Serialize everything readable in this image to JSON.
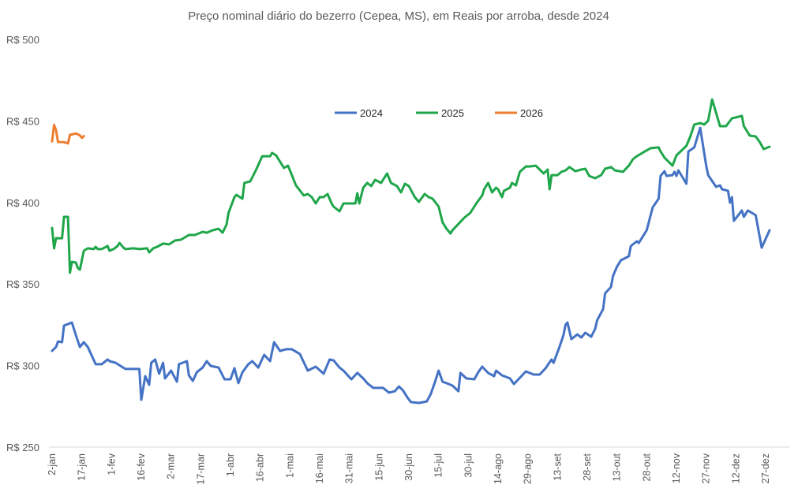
{
  "chart_data": {
    "type": "line",
    "title": "Preço nominal diário do bezerro (Cepea, MS), em Reais por arroba, desde 2024",
    "xlabel": "",
    "ylabel": "",
    "ylim": [
      250,
      500
    ],
    "yticks": [
      250,
      300,
      350,
      400,
      450,
      500
    ],
    "ytick_labels": [
      "R$ 250",
      "R$ 300",
      "R$ 350",
      "R$ 400",
      "R$ 450",
      "R$ 500"
    ],
    "xticks": [
      "2-jan",
      "17-jan",
      "1-fev",
      "16-fev",
      "2-mar",
      "17-mar",
      "1-abr",
      "16-abr",
      "1-mai",
      "16-mai",
      "31-mai",
      "15-jun",
      "30-jun",
      "15-jul",
      "30-jul",
      "14-ago",
      "29-ago",
      "13-set",
      "28-set",
      "13-out",
      "28-out",
      "12-nov",
      "27-nov",
      "12-dez",
      "27-dez"
    ],
    "grid": false,
    "legend_position": "top-center",
    "series": [
      {
        "name": "2024",
        "color": "#4472C4",
        "x": [
          "2-jan",
          "4-jan",
          "5-jan",
          "7-jan",
          "8-jan",
          "12-jan",
          "14-jan",
          "16-jan",
          "18-jan",
          "20-jan",
          "24-jan",
          "27-jan",
          "30-jan",
          "31-jan",
          "3-fev",
          "8-fev",
          "15-fev",
          "16-fev",
          "18-fev",
          "20-fev",
          "21-fev",
          "23-fev",
          "25-fev",
          "27-fev",
          "28-fev",
          "2-mar",
          "5-mar",
          "6-mar",
          "10-mar",
          "11-mar",
          "13-mar",
          "15-mar",
          "18-mar",
          "20-mar",
          "22-mar",
          "26-mar",
          "29-mar",
          "1-abr",
          "3-abr",
          "5-abr",
          "7-abr",
          "10-abr",
          "12-abr",
          "15-abr",
          "18-abr",
          "21-abr",
          "23-abr",
          "26-abr",
          "29-abr",
          "2-mai",
          "6-mai",
          "10-mai",
          "14-mai",
          "18-mai",
          "21-mai",
          "23-mai",
          "26-mai",
          "28-mai",
          "1-jun",
          "4-jun",
          "7-jun",
          "9-jun",
          "12-jun",
          "17-jun",
          "20-jun",
          "23-jun",
          "25-jun",
          "27-jun",
          "29-jun",
          "1-jul",
          "5-jul",
          "9-jul",
          "11-jul",
          "13-jul",
          "15-jul",
          "17-jul",
          "19-jul",
          "22-jul",
          "25-jul",
          "26-jul",
          "29-jul",
          "2-ago",
          "4-ago",
          "6-ago",
          "9-ago",
          "12-ago",
          "13-ago",
          "16-ago",
          "20-ago",
          "22-ago",
          "25-ago",
          "28-ago",
          "1-set",
          "4-set",
          "7-set",
          "10-set",
          "11-set",
          "14-set",
          "16-set",
          "17-set",
          "18-set",
          "20-set",
          "23-set",
          "25-set",
          "27-set",
          "30-set",
          "2-out",
          "3-out",
          "6-out",
          "7-out",
          "10-out",
          "11-out",
          "13-out",
          "15-out",
          "19-out",
          "20-out",
          "23-out",
          "24-out",
          "28-out",
          "31-out",
          "3-nov",
          "4-nov",
          "6-nov",
          "7-nov",
          "10-nov",
          "11-nov",
          "12-nov",
          "13-nov",
          "17-nov",
          "18-nov",
          "21-nov",
          "24-nov",
          "27-nov",
          "28-nov",
          "2-dez",
          "4-dez",
          "5-dez",
          "8-dez",
          "9-dez",
          "10-dez",
          "11-dez",
          "15-dez",
          "16-dez",
          "18-dez",
          "22-dez",
          "25-dez",
          "29-dez"
        ],
        "y": [
          309.0,
          311.4,
          314.8,
          314.3,
          324.5,
          326.4,
          318.7,
          311.4,
          314.3,
          311.4,
          300.8,
          300.8,
          303.7,
          302.7,
          301.7,
          297.9,
          297.9,
          279.0,
          293.5,
          288.2,
          301.7,
          303.7,
          295.0,
          301.7,
          292.1,
          296.9,
          290.1,
          300.8,
          302.7,
          294.0,
          290.6,
          295.9,
          298.8,
          302.7,
          299.8,
          298.8,
          291.6,
          291.6,
          298.4,
          289.2,
          295.9,
          300.8,
          302.7,
          298.8,
          306.6,
          302.7,
          314.3,
          309.0,
          310.0,
          310.0,
          307.1,
          296.9,
          299.3,
          295.0,
          303.7,
          303.2,
          298.8,
          296.9,
          291.6,
          295.5,
          292.1,
          289.2,
          286.3,
          286.3,
          283.4,
          284.3,
          287.2,
          284.8,
          280.9,
          277.6,
          277.1,
          278.0,
          282.4,
          289.2,
          296.9,
          290.1,
          289.2,
          287.7,
          284.3,
          295.5,
          292.1,
          291.6,
          295.9,
          299.3,
          295.5,
          293.5,
          296.9,
          294.0,
          292.1,
          288.7,
          292.5,
          296.4,
          294.5,
          294.5,
          298.4,
          303.7,
          301.7,
          311.4,
          318.7,
          324.9,
          326.4,
          316.2,
          319.1,
          317.2,
          320.1,
          317.7,
          322.5,
          327.9,
          334.6,
          344.3,
          348.2,
          354.9,
          360.7,
          364.6,
          367.0,
          373.3,
          376.2,
          375.2,
          383.0,
          397.0,
          402.3,
          416.3,
          419.2,
          416.3,
          416.8,
          418.8,
          416.3,
          419.7,
          411.5,
          431.3,
          433.8,
          445.8,
          422.6,
          416.8,
          409.6,
          410.5,
          408.1,
          407.2,
          399.9,
          403.3,
          388.8,
          395.1,
          391.2,
          395.1,
          392.2,
          372.3,
          383.0
        ]
      },
      {
        "name": "2025",
        "color": "#1FA64A",
        "x": [
          "2-jan",
          "3-jan",
          "4-jan",
          "7-jan",
          "8-jan",
          "10-jan",
          "11-jan",
          "12-jan",
          "14-jan",
          "15-jan",
          "16-jan",
          "18-jan",
          "20-jan",
          "23-jan",
          "24-jan",
          "25-jan",
          "27-jan",
          "30-jan",
          "31-jan",
          "2-fev",
          "4-fev",
          "5-fev",
          "7-fev",
          "8-fev",
          "12-fev",
          "15-fev",
          "19-fev",
          "20-fev",
          "22-fev",
          "24-fev",
          "27-fev",
          "1-mar",
          "4-mar",
          "7-mar",
          "11-mar",
          "14-mar",
          "18-mar",
          "20-mar",
          "23-mar",
          "26-mar",
          "28-mar",
          "30-mar",
          "31-mar",
          "3-abr",
          "4-abr",
          "7-abr",
          "8-abr",
          "11-abr",
          "12-abr",
          "14-abr",
          "17-abr",
          "18-abr",
          "21-abr",
          "22-abr",
          "24-abr",
          "26-abr",
          "28-abr",
          "30-abr",
          "2-mai",
          "4-mai",
          "8-mai",
          "10-mai",
          "12-mai",
          "14-mai",
          "16-mai",
          "18-mai",
          "20-mai",
          "22-mai",
          "23-mai",
          "26-mai",
          "28-mai",
          "1-jun",
          "3-jun",
          "4-jun",
          "5-jun",
          "7-jun",
          "9-jun",
          "11-jun",
          "13-jun",
          "16-jun",
          "18-jun",
          "19-jun",
          "21-jun",
          "24-jun",
          "26-jun",
          "28-jun",
          "30-jun",
          "3-jul",
          "5-jul",
          "8-jul",
          "10-jul",
          "12-jul",
          "15-jul",
          "17-jul",
          "19-jul",
          "21-jul",
          "22-jul",
          "25-jul",
          "28-jul",
          "31-jul",
          "3-ago",
          "6-ago",
          "7-ago",
          "9-ago",
          "11-ago",
          "13-ago",
          "14-ago",
          "16-ago",
          "17-ago",
          "20-ago",
          "21-ago",
          "23-ago",
          "25-ago",
          "28-ago",
          "30-ago",
          "2-set",
          "4-set",
          "6-set",
          "8-set",
          "9-set",
          "10-set",
          "13-set",
          "15-set",
          "17-set",
          "19-set",
          "22-set",
          "25-set",
          "27-set",
          "29-set",
          "2-out",
          "5-out",
          "7-out",
          "10-out",
          "12-out",
          "16-out",
          "19-out",
          "21-out",
          "23-out",
          "27-out",
          "30-out",
          "3-nov",
          "4-nov",
          "6-nov",
          "10-nov",
          "12-nov",
          "17-nov",
          "19-nov",
          "21-nov",
          "24-nov",
          "26-nov",
          "28-nov",
          "30-nov",
          "4-dez",
          "7-dez",
          "10-dez",
          "15-dez",
          "16-dez",
          "19-dez",
          "22-dez",
          "24-dez",
          "26-dez",
          "29-dez"
        ],
        "y": [
          384.4,
          371.9,
          378.1,
          378.1,
          391.2,
          391.2,
          356.9,
          363.6,
          363.2,
          359.8,
          358.8,
          370.4,
          371.9,
          371.4,
          372.8,
          371.4,
          371.4,
          373.3,
          370.4,
          371.4,
          373.3,
          375.2,
          372.3,
          371.4,
          371.9,
          371.4,
          371.9,
          369.4,
          371.9,
          372.8,
          374.8,
          374.3,
          376.7,
          377.2,
          380.1,
          380.1,
          382.0,
          381.5,
          383.0,
          383.9,
          381.5,
          386.4,
          393.6,
          403.3,
          404.7,
          402.3,
          412.0,
          413.0,
          415.4,
          420.2,
          428.4,
          428.4,
          428.4,
          430.4,
          428.9,
          425.0,
          421.2,
          422.6,
          416.8,
          410.5,
          404.3,
          405.2,
          403.3,
          399.4,
          403.3,
          403.3,
          405.2,
          399.4,
          397.5,
          394.6,
          399.4,
          399.4,
          399.4,
          405.7,
          399.4,
          409.1,
          412.0,
          410.1,
          413.9,
          412.0,
          415.9,
          417.8,
          412.0,
          410.1,
          406.2,
          411.5,
          410.1,
          403.3,
          400.4,
          405.2,
          403.3,
          402.3,
          397.5,
          387.8,
          383.9,
          381.0,
          383.0,
          386.8,
          390.7,
          393.6,
          399.4,
          404.3,
          408.1,
          412.0,
          406.2,
          409.1,
          408.1,
          403.3,
          407.2,
          409.1,
          412.0,
          410.5,
          418.8,
          422.1,
          422.1,
          422.6,
          420.2,
          417.8,
          420.2,
          408.1,
          416.8,
          416.8,
          418.8,
          419.7,
          421.7,
          419.2,
          420.2,
          420.7,
          416.3,
          414.9,
          416.8,
          420.7,
          421.7,
          419.7,
          418.8,
          422.6,
          426.5,
          428.4,
          431.3,
          433.3,
          433.8,
          431.3,
          427.5,
          422.6,
          428.9,
          434.7,
          440.5,
          447.8,
          448.7,
          447.8,
          450.2,
          463.2,
          446.8,
          446.8,
          451.6,
          453.1,
          446.8,
          441.0,
          440.5,
          437.1,
          432.8,
          434.2
        ]
      },
      {
        "name": "2026",
        "color": "#ED7D31",
        "x": [
          "2-jan",
          "3-jan",
          "4-jan",
          "5-jan",
          "8-jan",
          "10-jan",
          "11-jan",
          "14-jan",
          "16-jan",
          "17-jan",
          "18-jan"
        ],
        "y": [
          437.5,
          447.6,
          444.4,
          437.1,
          437.0,
          436.2,
          441.5,
          442.3,
          441.2,
          439.6,
          440.7
        ]
      }
    ]
  }
}
